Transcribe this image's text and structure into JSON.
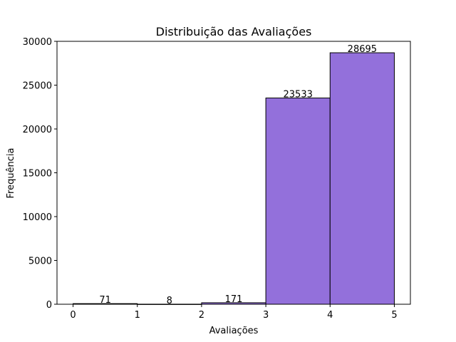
{
  "chart_data": {
    "type": "bar",
    "title": "Distribuição das Avaliações",
    "xlabel": "Avaliações",
    "ylabel": "Frequência",
    "bins": [
      {
        "start": 0,
        "end": 1,
        "value": 71
      },
      {
        "start": 1,
        "end": 2,
        "value": 8
      },
      {
        "start": 2,
        "end": 3,
        "value": 171
      },
      {
        "start": 3,
        "end": 4,
        "value": 23533
      },
      {
        "start": 4,
        "end": 5,
        "value": 28695
      }
    ],
    "xlim": [
      -0.25,
      5.25
    ],
    "ylim": [
      0,
      30000
    ],
    "xticks": [
      "0",
      "1",
      "2",
      "3",
      "4",
      "5"
    ],
    "yticks": [
      "0",
      "5000",
      "10000",
      "15000",
      "20000",
      "25000",
      "30000"
    ],
    "grid": false,
    "legend": "none",
    "bar_color": "#9370db",
    "edge_color": "#000000"
  }
}
